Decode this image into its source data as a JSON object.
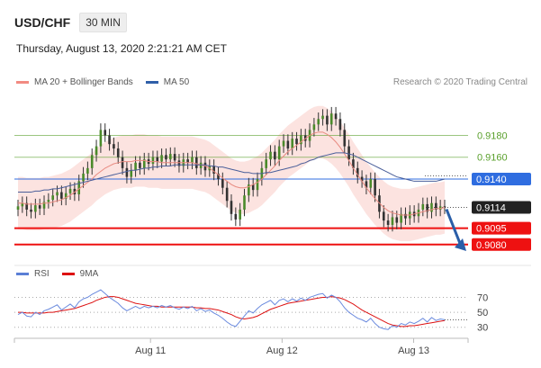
{
  "header": {
    "symbol": "USD/CHF",
    "timeframe": "30 MIN",
    "datetime": "Thursday, August 13, 2020 2:21:21 AM CET"
  },
  "legend": {
    "ma20": {
      "label": "MA 20 + Bollinger Bands",
      "color": "#f28b82"
    },
    "ma50": {
      "label": "MA 50",
      "color": "#2f5fa8"
    },
    "research": "Research © 2020 Trading Central"
  },
  "rsi_legend": {
    "rsi": {
      "label": "RSI",
      "color": "#5b7fd6"
    },
    "ma9": {
      "label": "9MA",
      "color": "#dd1111"
    }
  },
  "chart_data": {
    "type": "candlestick",
    "ylim": [
      0.9065,
      0.9215
    ],
    "x_ticks": [
      {
        "label": "Aug 11",
        "pos": 0.3
      },
      {
        "label": "Aug 12",
        "pos": 0.59
      },
      {
        "label": "Aug 13",
        "pos": 0.88
      }
    ],
    "levels": [
      {
        "value": 0.918,
        "label": "0.9180",
        "color": "#5aa02c",
        "style": "text"
      },
      {
        "value": 0.916,
        "label": "0.9160",
        "color": "#5aa02c",
        "style": "text"
      },
      {
        "value": 0.914,
        "label": "0.9140",
        "color": "#2f6de0",
        "style": "box"
      },
      {
        "value": 0.9114,
        "label": "0.9114",
        "color": "#222222",
        "style": "box"
      },
      {
        "value": 0.9095,
        "label": "0.9095",
        "color": "#ee1111",
        "style": "box"
      },
      {
        "value": 0.908,
        "label": "0.9080",
        "color": "#ee1111",
        "style": "box"
      }
    ],
    "close_series": [
      0.9115,
      0.9118,
      0.9112,
      0.911,
      0.9116,
      0.9113,
      0.9119,
      0.9121,
      0.9125,
      0.9128,
      0.9122,
      0.9127,
      0.9131,
      0.9126,
      0.9138,
      0.9145,
      0.915,
      0.9162,
      0.917,
      0.9185,
      0.918,
      0.9172,
      0.9168,
      0.916,
      0.915,
      0.9142,
      0.9148,
      0.9155,
      0.915,
      0.9158,
      0.9154,
      0.916,
      0.9156,
      0.9162,
      0.9158,
      0.9163,
      0.9157,
      0.9152,
      0.9158,
      0.9155,
      0.916,
      0.915,
      0.9155,
      0.9148,
      0.9152,
      0.9145,
      0.914,
      0.9132,
      0.912,
      0.9108,
      0.9103,
      0.9112,
      0.9125,
      0.9135,
      0.913,
      0.914,
      0.915,
      0.9158,
      0.9165,
      0.9158,
      0.917,
      0.9175,
      0.9168,
      0.9177,
      0.9172,
      0.918,
      0.9175,
      0.9185,
      0.919,
      0.9195,
      0.9198,
      0.919,
      0.92,
      0.9195,
      0.9185,
      0.917,
      0.9158,
      0.915,
      0.9142,
      0.9138,
      0.9132,
      0.914,
      0.9125,
      0.911,
      0.9102,
      0.9098,
      0.9105,
      0.91,
      0.9108,
      0.9104,
      0.911,
      0.9106,
      0.9112,
      0.9117,
      0.911,
      0.9118,
      0.9112,
      0.9115,
      0.9114
    ],
    "ma20_series": [
      0.9118,
      0.9118,
      0.9117,
      0.9117,
      0.9117,
      0.9117,
      0.9118,
      0.9118,
      0.9119,
      0.912,
      0.9121,
      0.9123,
      0.9125,
      0.9128,
      0.9131,
      0.9134,
      0.9137,
      0.914,
      0.9144,
      0.9147,
      0.915,
      0.9152,
      0.9154,
      0.9155,
      0.9156,
      0.9156,
      0.9156,
      0.9157,
      0.9157,
      0.9157,
      0.9156,
      0.9156,
      0.9156,
      0.9155,
      0.9155,
      0.9155,
      0.9155,
      0.9155,
      0.9155,
      0.9155,
      0.9155,
      0.9154,
      0.9153,
      0.9152,
      0.915,
      0.9147,
      0.9144,
      0.9141,
      0.9138,
      0.9135,
      0.9133,
      0.9132,
      0.9132,
      0.9133,
      0.9135,
      0.9137,
      0.914,
      0.9144,
      0.9148,
      0.9152,
      0.9157,
      0.9161,
      0.9165,
      0.9168,
      0.9171,
      0.9174,
      0.9177,
      0.918,
      0.9182,
      0.9183,
      0.9183,
      0.9181,
      0.9178,
      0.9174,
      0.9169,
      0.9163,
      0.9157,
      0.915,
      0.9144,
      0.9138,
      0.9132,
      0.9127,
      0.9122,
      0.9118,
      0.9114,
      0.9111,
      0.9109,
      0.9108,
      0.9107,
      0.9107,
      0.9107,
      0.9108,
      0.9109,
      0.911,
      0.9111,
      0.9112,
      0.9113,
      0.9113,
      0.9114
    ],
    "ma50_series": [
      0.9128,
      0.9128,
      0.9128,
      0.9128,
      0.9129,
      0.9129,
      0.913,
      0.913,
      0.9131,
      0.9131,
      0.9132,
      0.9133,
      0.9134,
      0.9135,
      0.9136,
      0.9137,
      0.9138,
      0.9139,
      0.914,
      0.9141,
      0.9142,
      0.9143,
      0.9144,
      0.9145,
      0.9146,
      0.9147,
      0.9148,
      0.9148,
      0.9149,
      0.915,
      0.915,
      0.9151,
      0.9151,
      0.9152,
      0.9152,
      0.9152,
      0.9153,
      0.9153,
      0.9153,
      0.9153,
      0.9153,
      0.9153,
      0.9153,
      0.9153,
      0.9152,
      0.9152,
      0.9151,
      0.9151,
      0.915,
      0.9149,
      0.9148,
      0.9147,
      0.9146,
      0.9146,
      0.9145,
      0.9145,
      0.9145,
      0.9146,
      0.9146,
      0.9147,
      0.9148,
      0.9149,
      0.915,
      0.9151,
      0.9152,
      0.9154,
      0.9155,
      0.9157,
      0.9158,
      0.916,
      0.9161,
      0.9162,
      0.9163,
      0.9164,
      0.9164,
      0.9164,
      0.9163,
      0.9162,
      0.916,
      0.9158,
      0.9156,
      0.9154,
      0.9152,
      0.915,
      0.9148,
      0.9146,
      0.9144,
      0.9142,
      0.9141,
      0.914,
      0.9139,
      0.9138,
      0.9138,
      0.9138,
      0.9138,
      0.9138,
      0.9138,
      0.9139,
      0.914
    ],
    "rsi": {
      "ylim": [
        20,
        85
      ],
      "levels": [
        {
          "value": 70,
          "label": "70"
        },
        {
          "value": 50,
          "label": "50"
        },
        {
          "value": 30,
          "label": "30"
        }
      ],
      "rsi_series": [
        47,
        50,
        45,
        44,
        50,
        47,
        52,
        54,
        57,
        60,
        53,
        57,
        61,
        56,
        64,
        68,
        70,
        74,
        77,
        80,
        75,
        70,
        66,
        62,
        56,
        52,
        55,
        58,
        55,
        58,
        56,
        58,
        56,
        59,
        57,
        59,
        56,
        54,
        57,
        55,
        58,
        52,
        55,
        51,
        53,
        49,
        46,
        42,
        37,
        33,
        31,
        38,
        45,
        52,
        49,
        55,
        60,
        63,
        66,
        60,
        66,
        68,
        64,
        68,
        65,
        69,
        66,
        70,
        72,
        74,
        75,
        69,
        73,
        70,
        64,
        56,
        50,
        46,
        42,
        40,
        37,
        42,
        35,
        30,
        28,
        27,
        32,
        30,
        35,
        33,
        37,
        35,
        38,
        42,
        37,
        43,
        39,
        41,
        40
      ],
      "ma9_series": [
        50,
        50,
        49,
        49,
        49,
        49,
        49,
        50,
        50,
        51,
        52,
        53,
        54,
        55,
        57,
        59,
        61,
        63,
        66,
        68,
        70,
        71,
        71,
        70,
        68,
        66,
        64,
        62,
        61,
        60,
        59,
        58,
        58,
        57,
        57,
        57,
        57,
        57,
        57,
        57,
        57,
        56,
        56,
        55,
        55,
        54,
        53,
        51,
        49,
        47,
        44,
        42,
        41,
        42,
        43,
        45,
        48,
        51,
        54,
        56,
        58,
        60,
        62,
        63,
        64,
        65,
        66,
        67,
        68,
        69,
        70,
        70,
        71,
        70,
        69,
        67,
        64,
        61,
        57,
        53,
        50,
        47,
        44,
        41,
        38,
        35,
        33,
        32,
        31,
        31,
        32,
        32,
        33,
        34,
        35,
        36,
        37,
        38,
        39
      ]
    }
  }
}
